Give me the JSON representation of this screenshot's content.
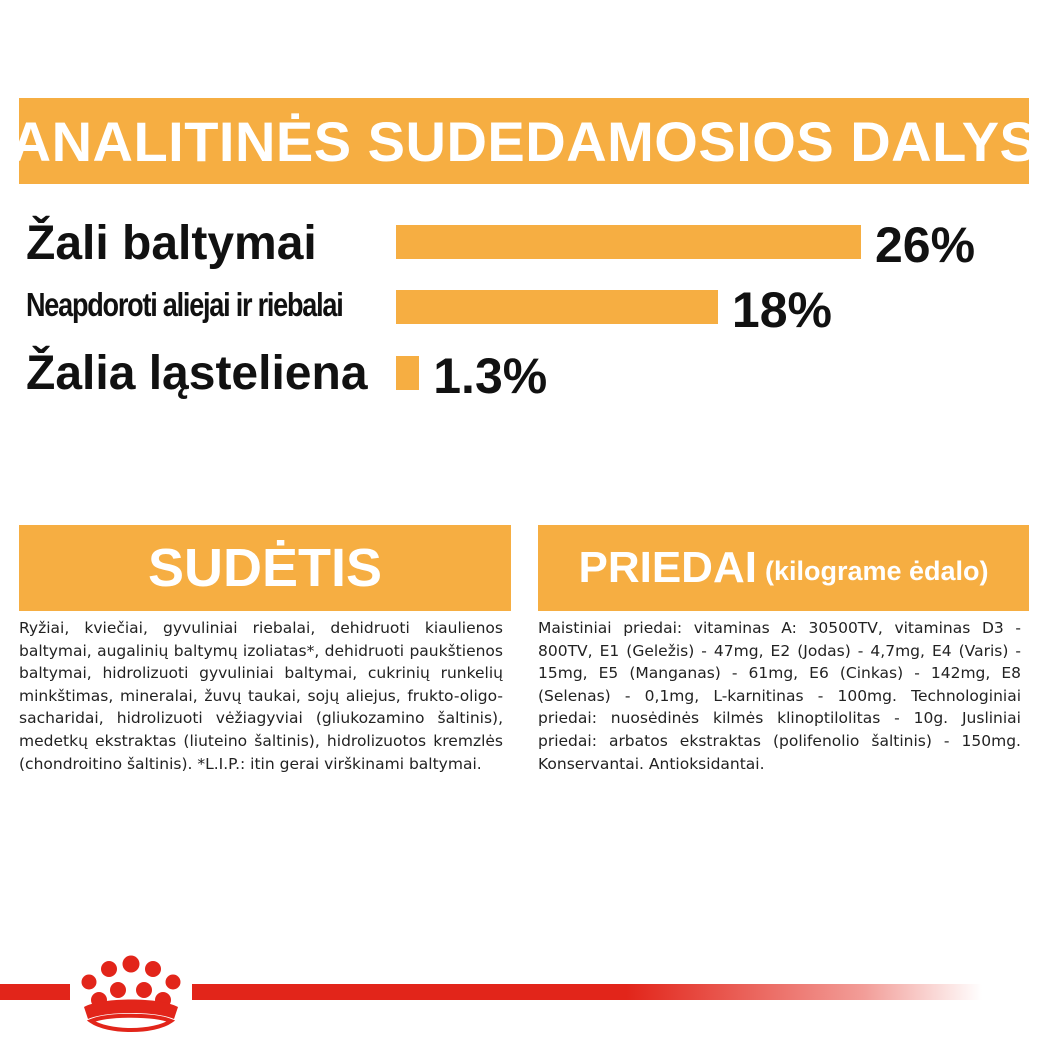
{
  "analytical": {
    "title": "ANALITINĖS SUDEDAMOSIOS DALYS",
    "items": [
      {
        "label": "Žali baltymai",
        "value": 26,
        "display": "26%"
      },
      {
        "label": "Neapdoroti aliejai ir riebalai",
        "value": 18,
        "display": "18%"
      },
      {
        "label": "Žalia ląsteliena",
        "value": 1.3,
        "display": "1.3%"
      }
    ]
  },
  "composition": {
    "title": "SUDĖTIS",
    "text": "Ryžiai, kviečiai, gyvuliniai riebalai, dehidruoti kiaulienos baltymai, augalinių baltymų izoliatas*, dehidruoti paukštienos baltymai, hidrolizuoti gyvuliniai baltymai, cukrinių runkelių minkštimas, mineralai, žuvų taukai, sojų aliejus, frukto-oligo-sacharidai, hidrolizuoti vėžiagyviai (gliukozamino šaltinis), medetkų ekstraktas (liuteino šaltinis), hidrolizuotos kremzlės (chondroitino šaltinis). *L.I.P.: itin gerai virškinami baltymai."
  },
  "additives": {
    "title": "PRIEDAI",
    "subtitle": "(kilograme ėdalo)",
    "text": "Maistiniai priedai: vitaminas A: 30500TV, vitaminas D3 - 800TV, E1 (Geležis) - 47mg, E2 (Jodas) - 4,7mg, E4 (Varis) - 15mg, E5 (Manganas) - 61mg, E6 (Cinkas) - 142mg, E8 (Selenas) - 0,1mg, L-karnitinas - 100mg. Technologiniai priedai: nuosėdinės kilmės klinoptilolitas - 10g. Jusliniai priedai: arbatos ekstraktas (polifenolio šaltinis) - 150mg. Konservantai. Antioksidantai."
  },
  "colors": {
    "accent": "#F6AE42",
    "brand_red": "#E2251A",
    "text": "#111111"
  },
  "logo": {
    "icon": "royal-canin-crown-icon"
  }
}
